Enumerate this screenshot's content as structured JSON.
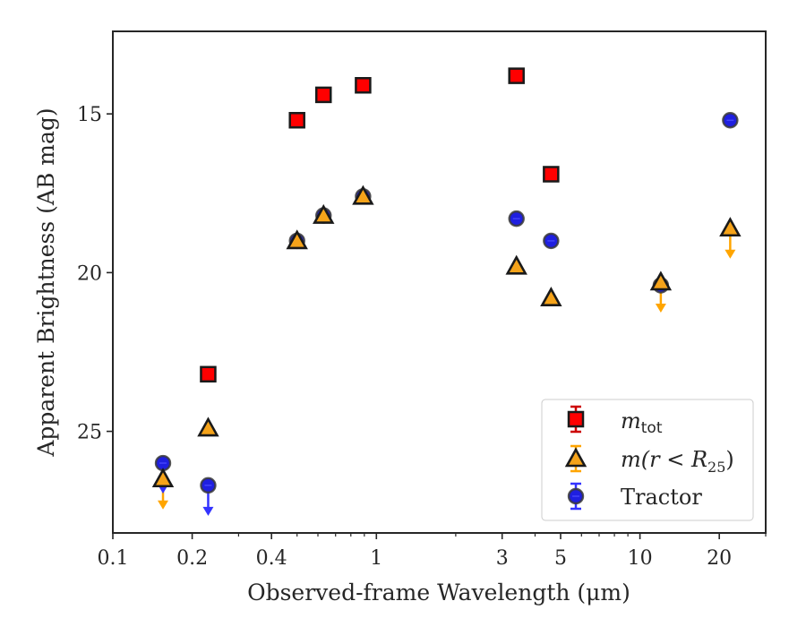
{
  "chart_data": {
    "type": "scatter",
    "xlabel": "Observed-frame Wavelength (μm)",
    "ylabel": "Apparent Brightness (AB mag)",
    "xscale": "log",
    "xlim": [
      0.1,
      30
    ],
    "ylim": [
      28.2,
      12.4
    ],
    "yaxis_inverted": true,
    "grid": false,
    "legend_position": "lower right",
    "x_ticks": [
      {
        "value": 0.1,
        "label": "0.1"
      },
      {
        "value": 0.2,
        "label": "0.2"
      },
      {
        "value": 0.4,
        "label": "0.4"
      },
      {
        "value": 1,
        "label": "1"
      },
      {
        "value": 3,
        "label": "3"
      },
      {
        "value": 5,
        "label": "5"
      },
      {
        "value": 10,
        "label": "10"
      },
      {
        "value": 20,
        "label": "20"
      }
    ],
    "y_ticks": [
      {
        "value": 15,
        "label": "15"
      },
      {
        "value": 20,
        "label": "20"
      },
      {
        "value": 25,
        "label": "25"
      }
    ],
    "series": [
      {
        "name": "m_tot",
        "marker": "square",
        "color": "#ff0000",
        "edge_color": "#1a1a1a",
        "points": [
          {
            "x": 0.23,
            "y": 23.2
          },
          {
            "x": 0.5,
            "y": 15.2
          },
          {
            "x": 0.63,
            "y": 14.4
          },
          {
            "x": 0.89,
            "y": 14.1
          },
          {
            "x": 3.4,
            "y": 13.8
          },
          {
            "x": 4.6,
            "y": 16.9
          }
        ]
      },
      {
        "name": "m(r<R25)",
        "marker": "triangle",
        "color": "#f5a31a",
        "edge_color": "#1a1a1a",
        "arrow_color": "#ffa500",
        "points": [
          {
            "x": 0.155,
            "y": 26.5,
            "upper_limit": true
          },
          {
            "x": 0.23,
            "y": 24.9
          },
          {
            "x": 0.5,
            "y": 19.0
          },
          {
            "x": 0.63,
            "y": 18.2
          },
          {
            "x": 0.89,
            "y": 17.6
          },
          {
            "x": 3.4,
            "y": 19.8
          },
          {
            "x": 4.6,
            "y": 20.8
          },
          {
            "x": 12.0,
            "y": 20.3,
            "upper_limit": true
          },
          {
            "x": 22.0,
            "y": 18.6,
            "upper_limit": true
          }
        ]
      },
      {
        "name": "Tractor",
        "marker": "circle",
        "color": "#1f1fe0",
        "edge_color": "#3a3a3a",
        "arrow_color": "#3333ff",
        "points": [
          {
            "x": 0.155,
            "y": 26.0,
            "upper_limit": true
          },
          {
            "x": 0.23,
            "y": 26.7,
            "upper_limit": true
          },
          {
            "x": 0.5,
            "y": 19.0
          },
          {
            "x": 0.63,
            "y": 18.2
          },
          {
            "x": 0.89,
            "y": 17.6
          },
          {
            "x": 3.4,
            "y": 18.3
          },
          {
            "x": 4.6,
            "y": 19.0
          },
          {
            "x": 12.0,
            "y": 20.4
          },
          {
            "x": 22.0,
            "y": 15.2
          }
        ]
      }
    ],
    "legend": [
      {
        "series": "m_tot",
        "label_main": "m",
        "label_sub": "tot"
      },
      {
        "series": "m(r<R25)",
        "label_main": "m(r < R",
        "label_sub": "25",
        "label_end": ")"
      },
      {
        "series": "Tractor",
        "label_main": "Tractor",
        "label_sub": "",
        "label_end": ""
      }
    ]
  }
}
